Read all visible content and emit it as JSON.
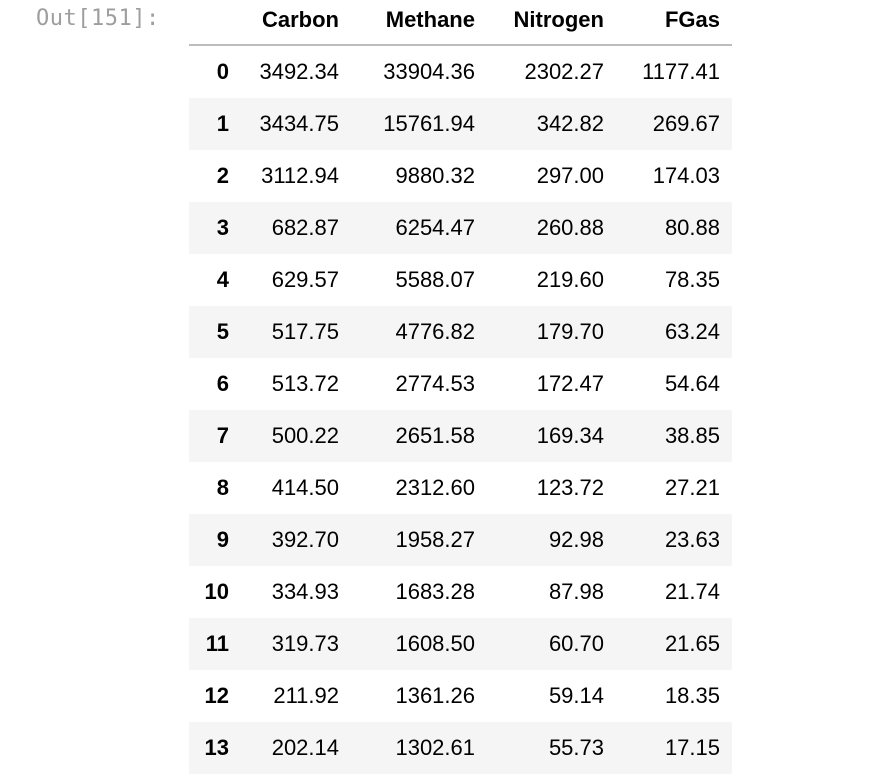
{
  "prompt": "Out[151]:",
  "table": {
    "columns": [
      "Carbon",
      "Methane",
      "Nitrogen",
      "FGas"
    ],
    "rows": [
      {
        "index": "0",
        "values": [
          "3492.34",
          "33904.36",
          "2302.27",
          "1177.41"
        ]
      },
      {
        "index": "1",
        "values": [
          "3434.75",
          "15761.94",
          "342.82",
          "269.67"
        ]
      },
      {
        "index": "2",
        "values": [
          "3112.94",
          "9880.32",
          "297.00",
          "174.03"
        ]
      },
      {
        "index": "3",
        "values": [
          "682.87",
          "6254.47",
          "260.88",
          "80.88"
        ]
      },
      {
        "index": "4",
        "values": [
          "629.57",
          "5588.07",
          "219.60",
          "78.35"
        ]
      },
      {
        "index": "5",
        "values": [
          "517.75",
          "4776.82",
          "179.70",
          "63.24"
        ]
      },
      {
        "index": "6",
        "values": [
          "513.72",
          "2774.53",
          "172.47",
          "54.64"
        ]
      },
      {
        "index": "7",
        "values": [
          "500.22",
          "2651.58",
          "169.34",
          "38.85"
        ]
      },
      {
        "index": "8",
        "values": [
          "414.50",
          "2312.60",
          "123.72",
          "27.21"
        ]
      },
      {
        "index": "9",
        "values": [
          "392.70",
          "1958.27",
          "92.98",
          "23.63"
        ]
      },
      {
        "index": "10",
        "values": [
          "334.93",
          "1683.28",
          "87.98",
          "21.74"
        ]
      },
      {
        "index": "11",
        "values": [
          "319.73",
          "1608.50",
          "60.70",
          "21.65"
        ]
      },
      {
        "index": "12",
        "values": [
          "211.92",
          "1361.26",
          "59.14",
          "18.35"
        ]
      },
      {
        "index": "13",
        "values": [
          "202.14",
          "1302.61",
          "55.73",
          "17.15"
        ]
      }
    ]
  }
}
